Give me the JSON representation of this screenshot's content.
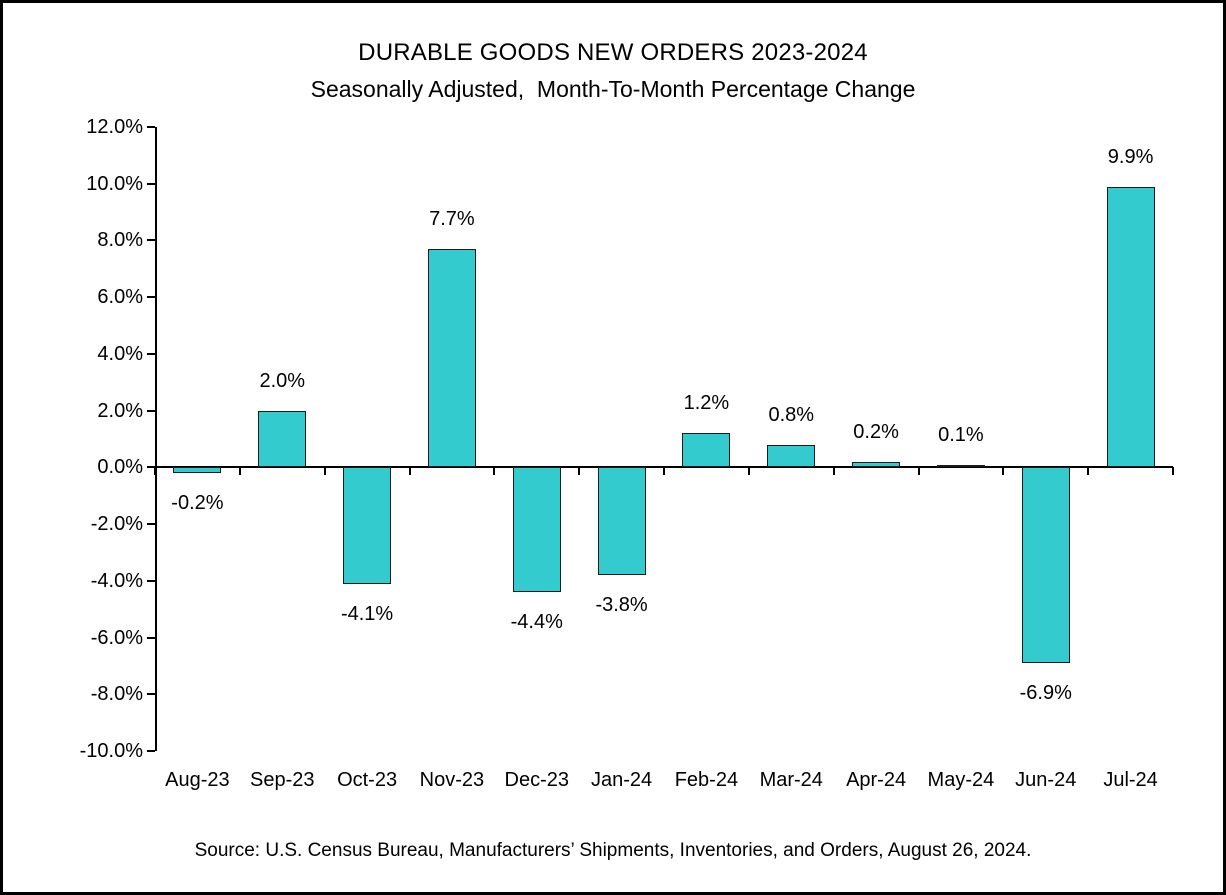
{
  "chart_data": {
    "type": "bar",
    "title": "DURABLE GOODS NEW ORDERS 2023-2024",
    "subtitle": "Seasonally Adjusted,  Month-To-Month Percentage Change",
    "source": "Source: U.S. Census Bureau, Manufacturers’ Shipments, Inventories, and Orders, August 26, 2024.",
    "categories": [
      "Aug-23",
      "Sep-23",
      "Oct-23",
      "Nov-23",
      "Dec-23",
      "Jan-24",
      "Feb-24",
      "Mar-24",
      "Apr-24",
      "May-24",
      "Jun-24",
      "Jul-24"
    ],
    "values": [
      -0.2,
      2.0,
      -4.1,
      7.7,
      -4.4,
      -3.8,
      1.2,
      0.8,
      0.2,
      0.1,
      -6.9,
      9.9
    ],
    "value_labels": [
      "-0.2%",
      "2.0%",
      "-4.1%",
      "7.7%",
      "-4.4%",
      "-3.8%",
      "1.2%",
      "0.8%",
      "0.2%",
      "0.1%",
      "-6.9%",
      "9.9%"
    ],
    "y_tick_labels": [
      "12.0%",
      "10.0%",
      "8.0%",
      "6.0%",
      "4.0%",
      "2.0%",
      "0.0%",
      "-2.0%",
      "-4.0%",
      "-6.0%",
      "-8.0%",
      "-10.0%"
    ],
    "ylim": [
      -10,
      12
    ],
    "y_tick_step": 2,
    "xlabel": "",
    "ylabel": "",
    "grid": false,
    "legend": "none",
    "bar_color": "#33CBCD",
    "bar_border_color": "#1A1A1A",
    "axis_color": "#000000",
    "text_color": "#000000"
  }
}
